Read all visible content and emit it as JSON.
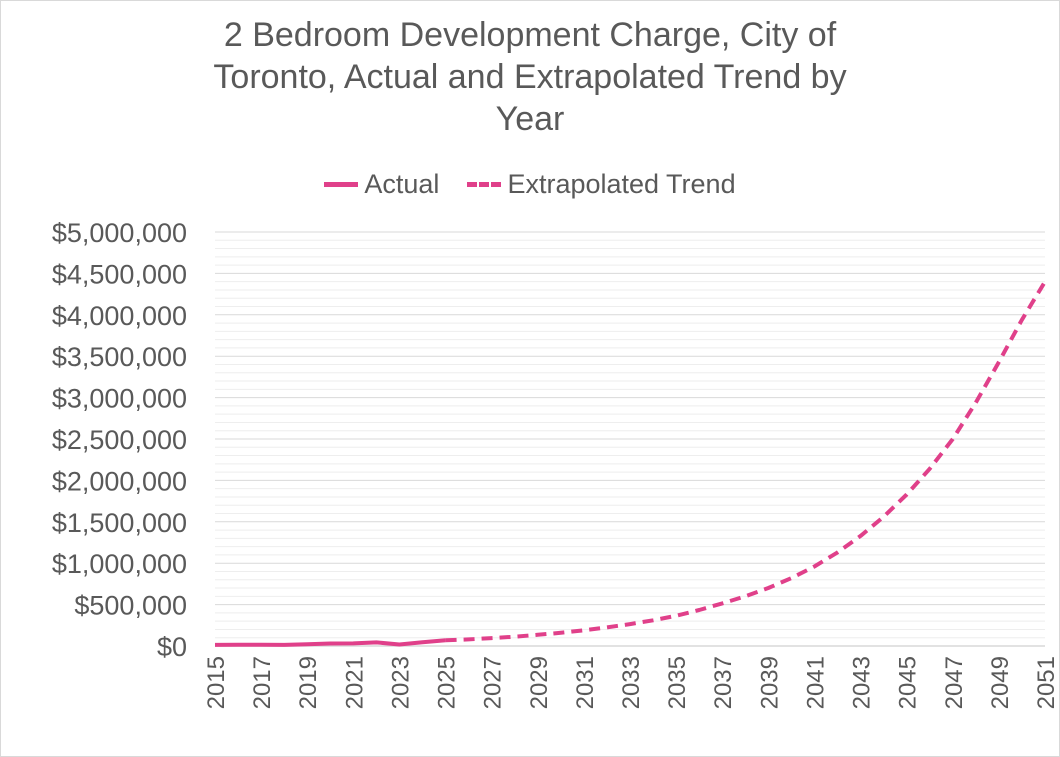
{
  "colors": {
    "series": "#e0408a",
    "grid_major": "#d9d9d9",
    "grid_minor": "#eeeeee",
    "text": "#595959"
  },
  "chart_data": {
    "type": "line",
    "title": "2 Bedroom Development Charge, City of Toronto, Actual and Extrapolated Trend by Year",
    "title_lines": [
      "2 Bedroom Development Charge, City of",
      "Toronto, Actual and Extrapolated Trend by",
      "Year"
    ],
    "legend": [
      "Actual",
      "Extrapolated Trend"
    ],
    "legend_position": "top",
    "xlabel": "",
    "ylabel": "",
    "xlim": [
      2015,
      2051
    ],
    "ylim": [
      0,
      5000000
    ],
    "grid": true,
    "x_tick_labels": [
      "2015",
      "2017",
      "2019",
      "2021",
      "2023",
      "2025",
      "2027",
      "2029",
      "2031",
      "2033",
      "2035",
      "2037",
      "2039",
      "2041",
      "2043",
      "2045",
      "2047",
      "2049",
      "2051"
    ],
    "y_tick_labels": [
      "$0",
      "$500,000",
      "$1,000,000",
      "$1,500,000",
      "$2,000,000",
      "$2,500,000",
      "$3,000,000",
      "$3,500,000",
      "$4,000,000",
      "$4,500,000",
      "$5,000,000"
    ],
    "y_ticks": [
      0,
      500000,
      1000000,
      1500000,
      2000000,
      2500000,
      3000000,
      3500000,
      4000000,
      4500000,
      5000000
    ],
    "series": [
      {
        "name": "Actual",
        "style": "solid",
        "x": [
          2015,
          2016,
          2017,
          2018,
          2019,
          2020,
          2021,
          2022,
          2023,
          2024,
          2025
        ],
        "values": [
          13000,
          15000,
          14000,
          13000,
          20000,
          30000,
          32000,
          43000,
          18000,
          45000,
          70000
        ]
      },
      {
        "name": "Extrapolated Trend",
        "style": "dashed",
        "x": [
          2025,
          2026,
          2027,
          2028,
          2029,
          2030,
          2031,
          2032,
          2033,
          2034,
          2035,
          2036,
          2037,
          2038,
          2039,
          2040,
          2041,
          2042,
          2043,
          2044,
          2045,
          2046,
          2047,
          2048,
          2049,
          2050,
          2051
        ],
        "values": [
          70000,
          80000,
          95000,
          112000,
          135000,
          160000,
          190000,
          225000,
          265000,
          310000,
          365000,
          435000,
          515000,
          600000,
          700000,
          820000,
          960000,
          1130000,
          1330000,
          1560000,
          1830000,
          2140000,
          2500000,
          2940000,
          3430000,
          3940000,
          4400000
        ]
      }
    ]
  }
}
